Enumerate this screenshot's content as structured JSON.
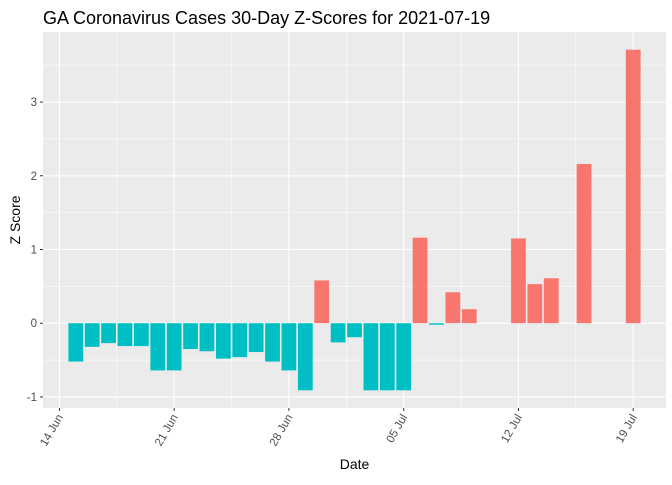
{
  "chart_data": {
    "type": "bar",
    "title": "GA Coronavirus Cases 30-Day Z-Scores for 2021-07-19",
    "xlabel": "Date",
    "ylabel": "Z Score",
    "x_ticks": [
      "14 Jun",
      "21 Jun",
      "28 Jun",
      "05 Jul",
      "12 Jul",
      "19 Jul"
    ],
    "y_ticks": [
      -1,
      0,
      1,
      2,
      3
    ],
    "xlim": [
      "2021-06-13",
      "2021-07-21"
    ],
    "ylim": [
      -1.15,
      3.95
    ],
    "grid": true,
    "legend": "none",
    "colors": {
      "positive": "#F8766D",
      "negative": "#00BFC4",
      "panel": "#EBEBEB",
      "grid": "#FFFFFF"
    },
    "categories": [
      "2021-06-15",
      "2021-06-16",
      "2021-06-17",
      "2021-06-18",
      "2021-06-19",
      "2021-06-20",
      "2021-06-21",
      "2021-06-22",
      "2021-06-23",
      "2021-06-24",
      "2021-06-25",
      "2021-06-26",
      "2021-06-27",
      "2021-06-28",
      "2021-06-29",
      "2021-06-30",
      "2021-07-01",
      "2021-07-02",
      "2021-07-03",
      "2021-07-04",
      "2021-07-05",
      "2021-07-06",
      "2021-07-07",
      "2021-07-08",
      "2021-07-09",
      "2021-07-10",
      "2021-07-11",
      "2021-07-12",
      "2021-07-13",
      "2021-07-14",
      "2021-07-15",
      "2021-07-16",
      "2021-07-17",
      "2021-07-18",
      "2021-07-19"
    ],
    "values": [
      -0.52,
      -0.32,
      -0.27,
      -0.31,
      -0.31,
      -0.64,
      -0.64,
      -0.35,
      -0.38,
      -0.48,
      -0.46,
      -0.39,
      -0.52,
      -0.64,
      -0.91,
      0.58,
      -0.26,
      -0.19,
      -0.91,
      -0.91,
      -0.91,
      1.16,
      -0.02,
      0.42,
      0.19,
      0,
      0,
      1.15,
      0.53,
      0.61,
      0,
      2.16,
      0,
      0,
      3.71
    ]
  }
}
